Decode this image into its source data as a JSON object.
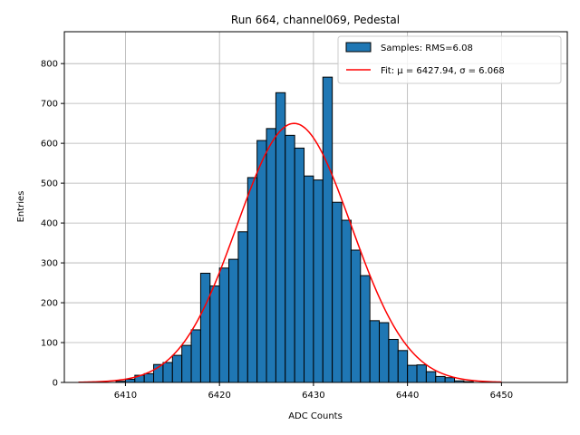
{
  "chart_data": {
    "type": "bar",
    "title": "Run 664, channel069, Pedestal",
    "xlabel": "ADC Counts",
    "ylabel": "Entries",
    "xlim": [
      6403.5,
      6457
    ],
    "ylim": [
      0,
      880
    ],
    "xticks": [
      6410,
      6420,
      6430,
      6440,
      6450
    ],
    "yticks": [
      0,
      100,
      200,
      300,
      400,
      500,
      600,
      700,
      800
    ],
    "grid": true,
    "legend_position": "top-right",
    "histogram": {
      "name": "Samples: RMS=6.08",
      "color": "#1f77b4",
      "edge_color": "#000000",
      "bin_width": 1,
      "bin_left_edges": [
        6409,
        6410,
        6411,
        6412,
        6413,
        6414,
        6415,
        6416,
        6417,
        6418,
        6419,
        6420,
        6421,
        6422,
        6423,
        6424,
        6425,
        6426,
        6427,
        6428,
        6429,
        6430,
        6431,
        6432,
        6433,
        6434,
        6435,
        6436,
        6437,
        6438,
        6439,
        6440,
        6441,
        6442,
        6443,
        6444,
        6445,
        6446
      ],
      "values": [
        3,
        8,
        18,
        22,
        45,
        50,
        68,
        93,
        132,
        274,
        242,
        287,
        309,
        378,
        514,
        607,
        637,
        727,
        620,
        588,
        518,
        508,
        766,
        452,
        407,
        332,
        268,
        155,
        150,
        108,
        80,
        43,
        44,
        27,
        15,
        12,
        4,
        2
      ]
    },
    "fit": {
      "name": "Fit: μ = 6427.94, σ = 6.068",
      "color": "#ff0000",
      "mu": 6427.94,
      "sigma": 6.068,
      "amplitude": 650,
      "x_range": [
        6405,
        6450
      ]
    }
  }
}
